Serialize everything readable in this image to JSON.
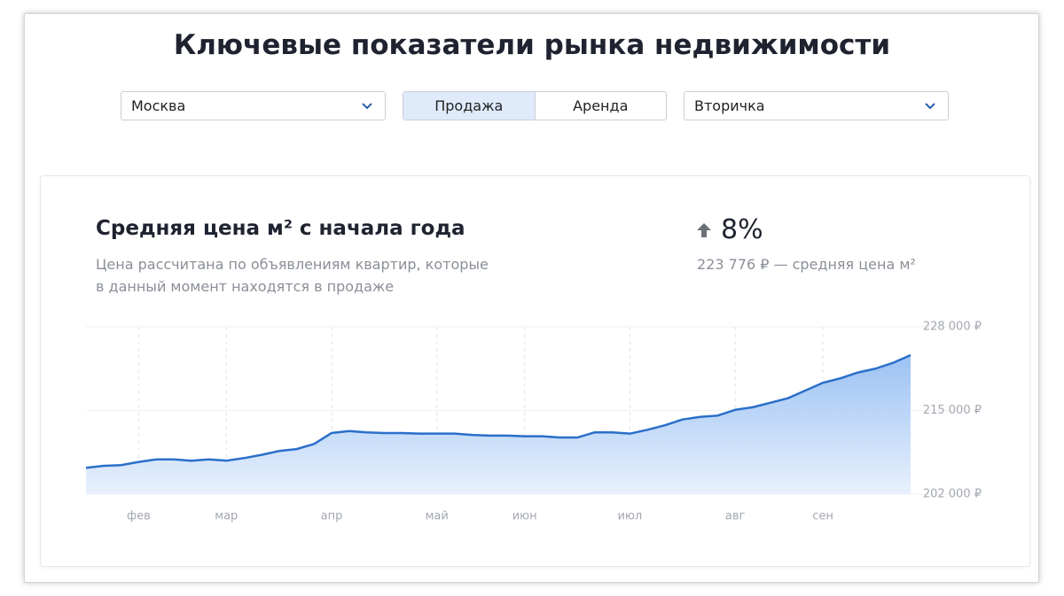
{
  "header": {
    "title": "Ключевые показатели рынка недвижимости"
  },
  "filters": {
    "region": "Москва",
    "deal_types": [
      "Продажа",
      "Аренда"
    ],
    "active_deal_type": 0,
    "market": "Вторичка"
  },
  "card": {
    "title": "Средняя цена м² с начала года",
    "subtitle_lines": [
      "Цена рассчитана по объявлениям квартир, которые",
      "в данный момент находятся в продаже"
    ],
    "change": "8%",
    "price_note": "223 776 ₽ — средняя цена м²"
  },
  "chart_data": {
    "type": "line",
    "color": "#2a6fc9",
    "area": true,
    "grid": true,
    "categories": [
      null,
      null,
      null,
      "фев",
      null,
      null,
      null,
      null,
      "мар",
      null,
      null,
      null,
      null,
      null,
      "апр",
      null,
      null,
      null,
      null,
      null,
      "май",
      null,
      null,
      null,
      null,
      "июн",
      null,
      null,
      null,
      null,
      null,
      "июл",
      null,
      null,
      null,
      null,
      null,
      "авг",
      null,
      null,
      null,
      null,
      "сен",
      null,
      null,
      null,
      null,
      null
    ],
    "values": [
      206100,
      206400,
      206500,
      207000,
      207400,
      207400,
      207200,
      207400,
      207200,
      207600,
      208100,
      208700,
      209000,
      209800,
      211500,
      211800,
      211600,
      211500,
      211500,
      211400,
      211400,
      211400,
      211200,
      211100,
      211100,
      211000,
      211000,
      210800,
      210800,
      211600,
      211600,
      211400,
      212000,
      212700,
      213600,
      214000,
      214200,
      215100,
      215500,
      216200,
      216900,
      218100,
      219300,
      220000,
      220900,
      221500,
      222400,
      223600
    ],
    "ylim": [
      202000,
      228000
    ],
    "yticks": [
      {
        "value": 202000,
        "label": "202 000 ₽"
      },
      {
        "value": 215000,
        "label": "215 000 ₽"
      },
      {
        "value": 228000,
        "label": "228 000 ₽"
      }
    ]
  }
}
